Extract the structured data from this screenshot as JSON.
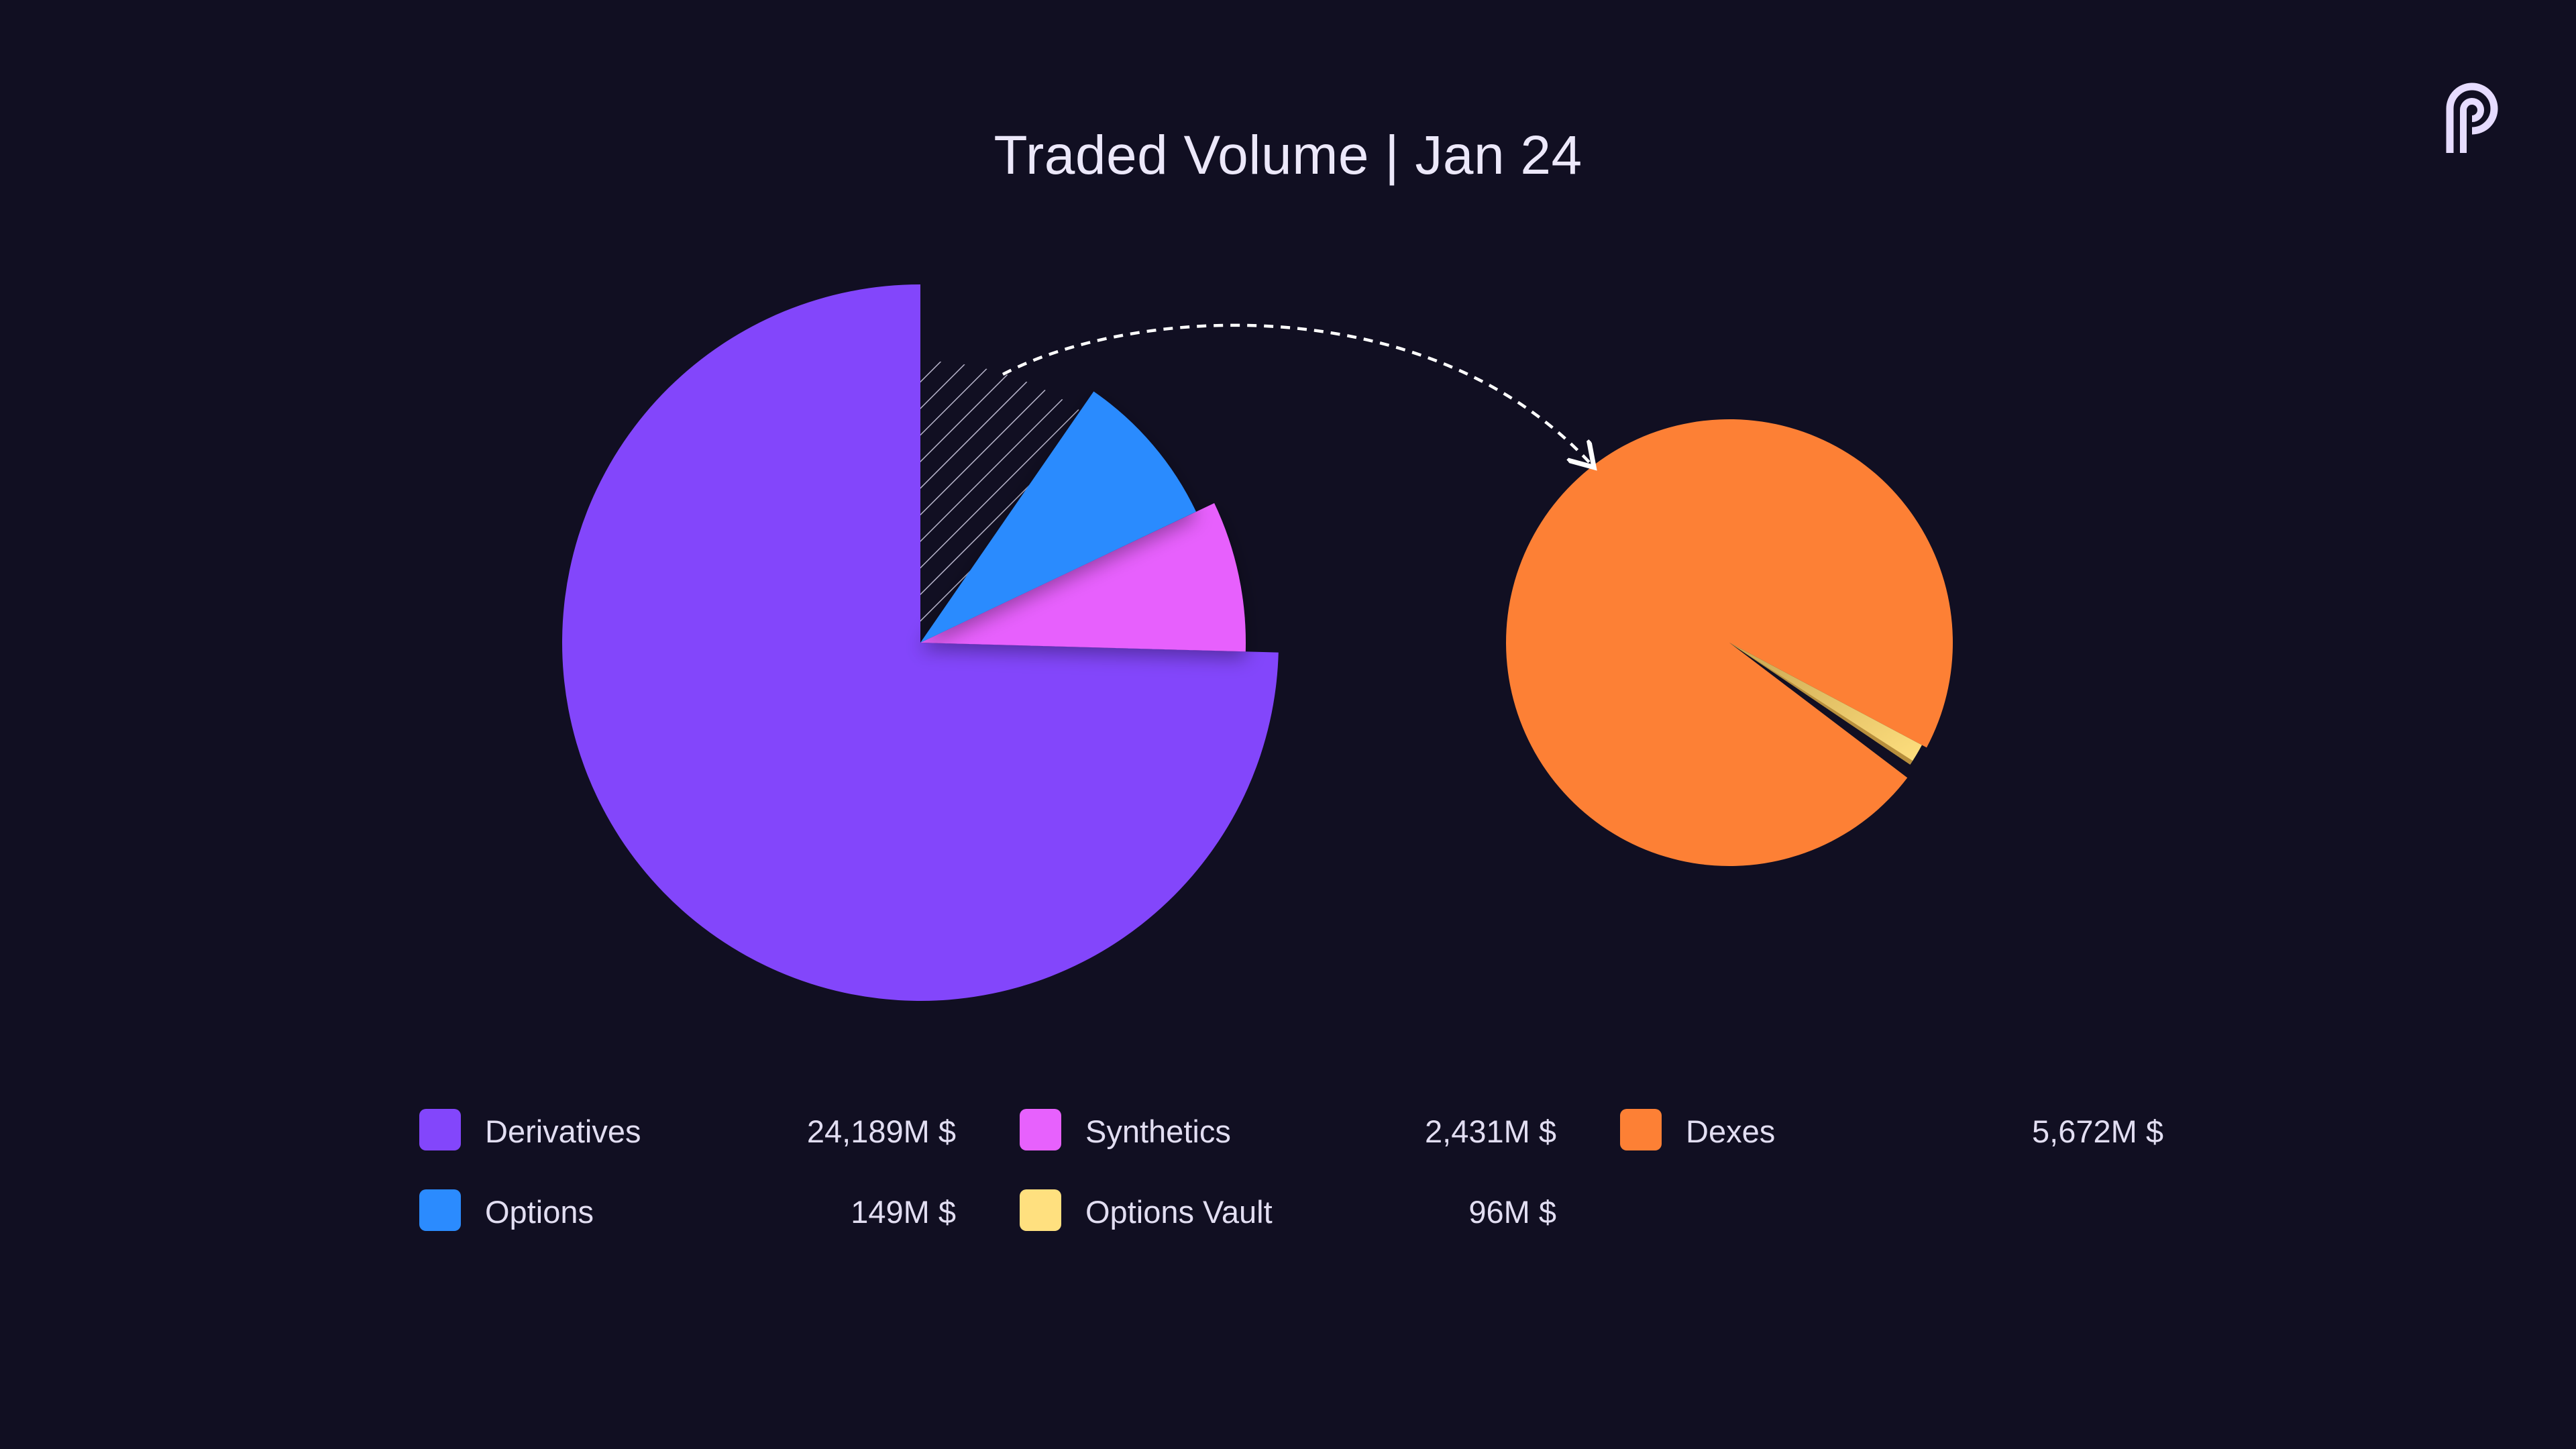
{
  "chart_data": [
    {
      "type": "pie",
      "title": "Traded Volume | Jan 24",
      "style": "exploded-pie with breakout",
      "series": [
        {
          "name": "Derivatives",
          "value": 24189,
          "unit": "M $",
          "display": "24,189M $",
          "color": "#8346fb"
        },
        {
          "name": "Synthetics",
          "value": 2431,
          "unit": "M $",
          "display": "2,431M $",
          "color": "#e761fd"
        },
        {
          "name": "Options",
          "value": 149,
          "unit": "M $",
          "display": "149M $",
          "color": "#2b8bfe"
        },
        {
          "name": "Dexes",
          "value": 5672,
          "unit": "M $",
          "display": "5,672M $",
          "color": "#fd8035",
          "breakout": true
        }
      ]
    },
    {
      "type": "pie",
      "title": "",
      "style": "breakout pie of Dexes",
      "series": [
        {
          "name": "Dexes",
          "value": 5672,
          "unit": "M $",
          "display": "5,672M $",
          "color": "#fd8035"
        },
        {
          "name": "Options Vault",
          "value": 96,
          "unit": "M $",
          "display": "96M $",
          "color": "#ffe07f"
        }
      ]
    }
  ],
  "legend": {
    "items": [
      {
        "label": "Derivatives",
        "value": "24,189M $",
        "color": "#8346fb"
      },
      {
        "label": "Synthetics",
        "value": "2,431M $",
        "color": "#e761fd"
      },
      {
        "label": "Dexes",
        "value": "5,672M $",
        "color": "#fd8035"
      },
      {
        "label": "Options",
        "value": "149M $",
        "color": "#2b8bfe"
      },
      {
        "label": "Options Vault",
        "value": "96M $",
        "color": "#ffe07f"
      }
    ]
  },
  "colors": {
    "background": "#110f22",
    "hatch": "#b9b6cc",
    "arrow": "#ffffff"
  },
  "icons": {
    "logo": "pyth-logo-icon"
  }
}
